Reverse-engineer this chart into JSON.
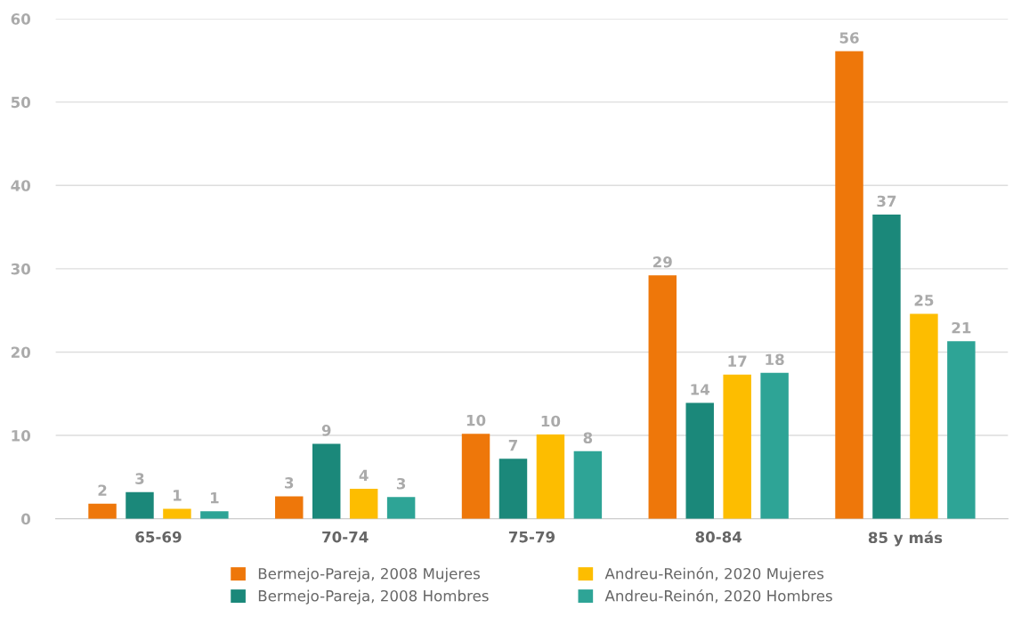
{
  "chart_data": {
    "type": "bar",
    "categories": [
      "65-69",
      "70-74",
      "75-79",
      "80-84",
      "85 y más"
    ],
    "series": [
      {
        "name": "Bermejo-Pareja, 2008 Mujeres",
        "color": "#ee770a",
        "values": [
          1.8,
          2.7,
          10.2,
          29.2,
          56.1
        ],
        "value_labels": [
          "2",
          "3",
          "10",
          "29",
          "56"
        ]
      },
      {
        "name": "Bermejo-Pareja, 2008 Hombres",
        "color": "#1b887a",
        "values": [
          3.2,
          9.0,
          7.2,
          13.9,
          36.5
        ],
        "value_labels": [
          "3",
          "9",
          "7",
          "14",
          "37"
        ]
      },
      {
        "name": "Andreu-Reinón, 2020 Mujeres",
        "color": "#fdbd00",
        "values": [
          1.2,
          3.6,
          10.1,
          17.3,
          24.6
        ],
        "value_labels": [
          "1",
          "4",
          "10",
          "17",
          "25"
        ]
      },
      {
        "name": "Andreu-Reinón, 2020 Hombres",
        "color": "#2ea496",
        "values": [
          0.9,
          2.6,
          8.1,
          17.5,
          21.3
        ],
        "value_labels": [
          "1",
          "3",
          "8",
          "18",
          "21"
        ]
      }
    ],
    "ylim": [
      0,
      60
    ],
    "yticks": [
      0,
      10,
      20,
      30,
      40,
      50,
      60
    ],
    "grid": "y",
    "legend": "bottom"
  }
}
